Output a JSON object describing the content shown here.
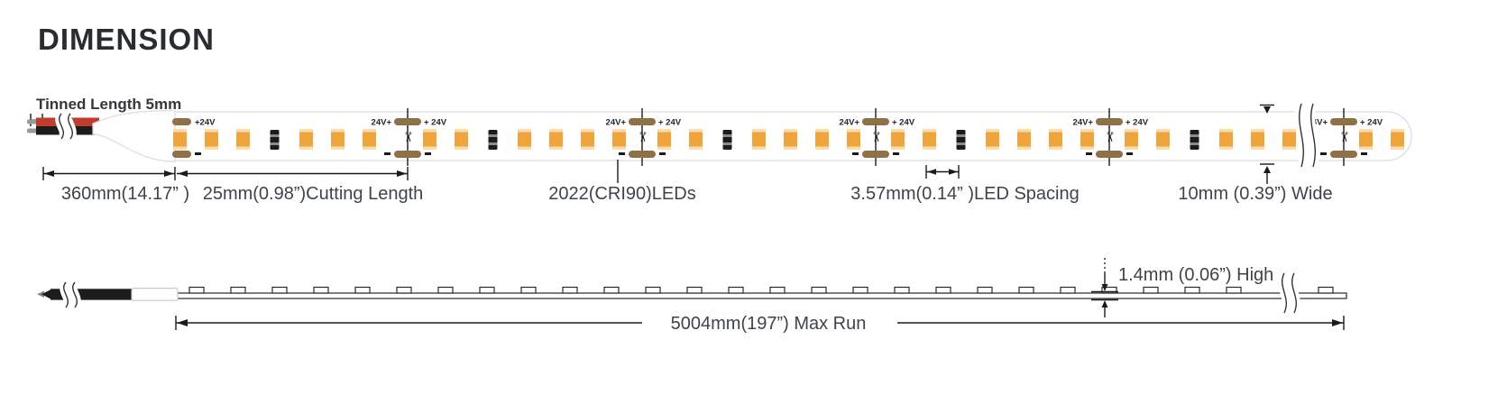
{
  "title": "DIMENSION",
  "colors": {
    "led_body": "#F0A43C",
    "led_cap": "#F8DCA9",
    "pad": "#8F7148",
    "wire_red": "#C23B30",
    "wire_black": "#1C1C1C",
    "outline": "#1A1A1A",
    "strip_edge": "#DCDCDC",
    "label_text": "#3F444A",
    "small_text": "#23262E",
    "resistor": "#1B1B1B",
    "resistor_stripe": "#8A8A8A",
    "tin": "#999999"
  },
  "icons": {
    "scissors": "✂"
  },
  "strip": {
    "pos_left": "24V+",
    "pos_right": "+ 24V",
    "pos_start": "+24V"
  },
  "top_view": {
    "tinned_label": "Tinned Length 5mm",
    "dims": {
      "lead": "360mm(14.17” )",
      "cutting": "25mm(0.98”)Cutting Length",
      "leds": "2022(CRI90)LEDs",
      "spacing": "3.57mm(0.14” )LED Spacing",
      "width": "10mm (0.39”) Wide"
    }
  },
  "side_view": {
    "dims": {
      "height": "1.4mm (0.06”) High",
      "max_run": "5004mm(197”) Max Run"
    }
  }
}
